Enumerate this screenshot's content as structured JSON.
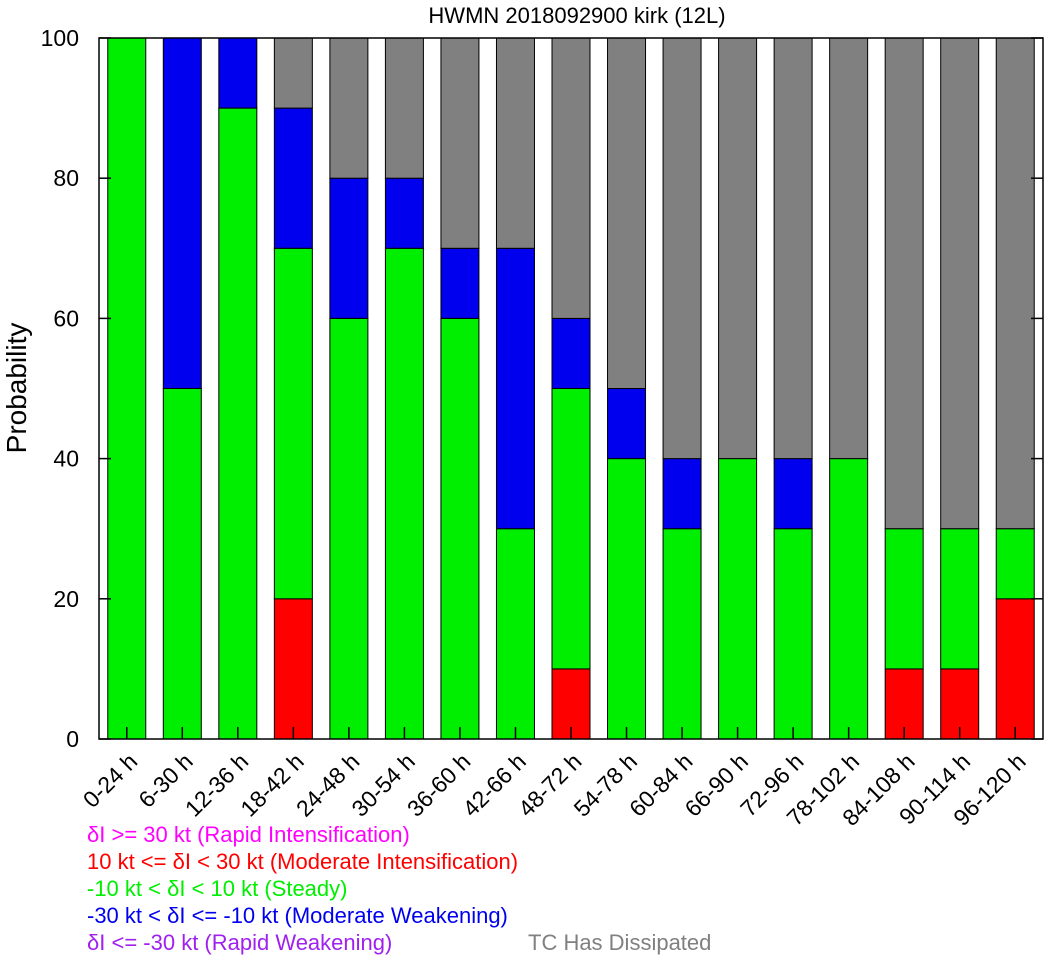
{
  "chart_data": {
    "type": "bar",
    "stacked": true,
    "title": "HWMN 2018092900 kirk (12L)",
    "xlabel": "",
    "ylabel": "Probability",
    "ylim": [
      0,
      100
    ],
    "yticks": [
      "0",
      "20",
      "40",
      "60",
      "80",
      "100"
    ],
    "categories": [
      "0-24 h",
      "6-30 h",
      "12-36 h",
      "18-42 h",
      "24-48 h",
      "30-54 h",
      "36-60 h",
      "42-66 h",
      "48-72 h",
      "54-78 h",
      "60-84 h",
      "66-90 h",
      "72-96 h",
      "78-102 h",
      "84-108 h",
      "90-114 h",
      "96-120 h"
    ],
    "series": [
      {
        "key": "ri",
        "color": "#ff00ff",
        "values": [
          0,
          0,
          0,
          0,
          0,
          0,
          0,
          0,
          0,
          0,
          0,
          0,
          0,
          0,
          0,
          0,
          0
        ]
      },
      {
        "key": "mi",
        "color": "#ff0000",
        "values": [
          0,
          0,
          0,
          20,
          0,
          0,
          0,
          0,
          10,
          0,
          0,
          0,
          0,
          0,
          10,
          10,
          20
        ]
      },
      {
        "key": "st",
        "color": "#00ee00",
        "values": [
          100,
          50,
          90,
          50,
          60,
          70,
          60,
          30,
          40,
          40,
          30,
          40,
          30,
          40,
          20,
          20,
          10
        ]
      },
      {
        "key": "mw",
        "color": "#0000ee",
        "values": [
          0,
          50,
          10,
          20,
          20,
          10,
          10,
          40,
          10,
          10,
          10,
          0,
          10,
          0,
          0,
          0,
          0
        ]
      },
      {
        "key": "rw",
        "color": "#a020f0",
        "values": [
          0,
          0,
          0,
          0,
          0,
          0,
          0,
          0,
          0,
          0,
          0,
          0,
          0,
          0,
          0,
          0,
          0
        ]
      },
      {
        "key": "diss",
        "color": "#808080",
        "values": [
          0,
          0,
          0,
          10,
          20,
          20,
          30,
          30,
          40,
          50,
          60,
          60,
          60,
          60,
          70,
          70,
          70
        ]
      }
    ],
    "grid": false
  },
  "legend": {
    "ri": {
      "text": "δI >= 30 kt (Rapid Intensification)",
      "color": "#ff00ff"
    },
    "mi": {
      "text": "10 kt <= δI < 30 kt (Moderate Intensification)",
      "color": "#ff0000"
    },
    "st": {
      "text": "-10 kt < δI < 10 kt (Steady)",
      "color": "#00ee00"
    },
    "mw": {
      "text": "-30 kt < δI <= -10 kt (Moderate Weakening)",
      "color": "#0000ee"
    },
    "rw": {
      "text": "δI <= -30 kt (Rapid Weakening)",
      "color": "#a020f0"
    },
    "diss": {
      "text": "TC Has Dissipated",
      "color": "#808080"
    }
  }
}
